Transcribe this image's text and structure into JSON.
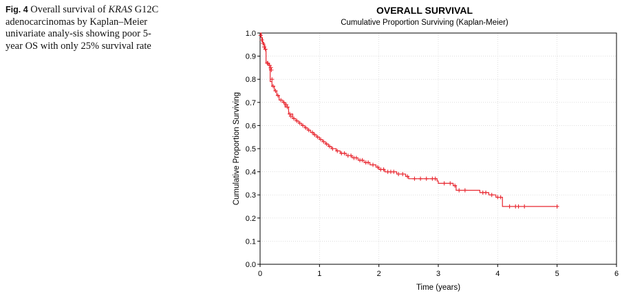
{
  "caption": {
    "label": "Fig. 4",
    "text_1": " Overall survival of ",
    "text_italic": "KRAS",
    "text_2": " G12C adenocarcinomas by Kaplan–Meier univariate analy-sis showing poor 5-year OS with only 25% survival rate"
  },
  "chart_data": {
    "type": "line",
    "title": "OVERALL SURVIVAL",
    "subtitle": "Cumulative Proportion Surviving (Kaplan-Meier)",
    "xlabel": "Time (years)",
    "ylabel": "Cumulative Proportion Surviving",
    "xlim": [
      0,
      6
    ],
    "ylim": [
      0,
      1
    ],
    "x_ticks": [
      "0",
      "1",
      "2",
      "3",
      "4",
      "5",
      "6"
    ],
    "y_ticks": [
      "0.0",
      "0.1",
      "0.2",
      "0.3",
      "0.4",
      "0.5",
      "0.6",
      "0.7",
      "0.8",
      "0.9",
      "1.0"
    ],
    "grid": true,
    "series_color": "#e8262f",
    "series": [
      {
        "step_points": [
          [
            0,
            1.0
          ],
          [
            0.02,
            0.98
          ],
          [
            0.04,
            0.96
          ],
          [
            0.06,
            0.95
          ],
          [
            0.08,
            0.93
          ],
          [
            0.1,
            0.87
          ],
          [
            0.15,
            0.86
          ],
          [
            0.16,
            0.84
          ],
          [
            0.17,
            0.79
          ],
          [
            0.2,
            0.77
          ],
          [
            0.24,
            0.75
          ],
          [
            0.28,
            0.73
          ],
          [
            0.32,
            0.71
          ],
          [
            0.38,
            0.7
          ],
          [
            0.42,
            0.68
          ],
          [
            0.48,
            0.65
          ],
          [
            0.55,
            0.63
          ],
          [
            0.6,
            0.62
          ],
          [
            0.65,
            0.61
          ],
          [
            0.7,
            0.6
          ],
          [
            0.75,
            0.59
          ],
          [
            0.8,
            0.58
          ],
          [
            0.85,
            0.57
          ],
          [
            0.9,
            0.56
          ],
          [
            0.95,
            0.55
          ],
          [
            1.0,
            0.54
          ],
          [
            1.05,
            0.53
          ],
          [
            1.1,
            0.52
          ],
          [
            1.15,
            0.51
          ],
          [
            1.2,
            0.5
          ],
          [
            1.28,
            0.49
          ],
          [
            1.35,
            0.48
          ],
          [
            1.45,
            0.47
          ],
          [
            1.55,
            0.46
          ],
          [
            1.65,
            0.45
          ],
          [
            1.75,
            0.44
          ],
          [
            1.85,
            0.43
          ],
          [
            1.95,
            0.42
          ],
          [
            2.0,
            0.41
          ],
          [
            2.1,
            0.4
          ],
          [
            2.3,
            0.39
          ],
          [
            2.45,
            0.38
          ],
          [
            2.5,
            0.37
          ],
          [
            2.98,
            0.36
          ],
          [
            3.0,
            0.35
          ],
          [
            3.25,
            0.34
          ],
          [
            3.3,
            0.32
          ],
          [
            3.7,
            0.31
          ],
          [
            3.85,
            0.3
          ],
          [
            3.97,
            0.29
          ],
          [
            4.08,
            0.25
          ]
        ],
        "end_x": 5.02,
        "censor_marks": [
          [
            0.01,
            0.99
          ],
          [
            0.03,
            0.97
          ],
          [
            0.05,
            0.955
          ],
          [
            0.07,
            0.94
          ],
          [
            0.09,
            0.93
          ],
          [
            0.12,
            0.87
          ],
          [
            0.13,
            0.87
          ],
          [
            0.16,
            0.86
          ],
          [
            0.18,
            0.85
          ],
          [
            0.19,
            0.84
          ],
          [
            0.2,
            0.8
          ],
          [
            0.22,
            0.77
          ],
          [
            0.26,
            0.75
          ],
          [
            0.3,
            0.73
          ],
          [
            0.35,
            0.71
          ],
          [
            0.4,
            0.7
          ],
          [
            0.44,
            0.69
          ],
          [
            0.46,
            0.68
          ],
          [
            0.5,
            0.65
          ],
          [
            0.52,
            0.64
          ],
          [
            0.57,
            0.63
          ],
          [
            0.62,
            0.62
          ],
          [
            0.67,
            0.61
          ],
          [
            0.72,
            0.6
          ],
          [
            0.77,
            0.59
          ],
          [
            0.82,
            0.58
          ],
          [
            0.88,
            0.57
          ],
          [
            0.92,
            0.56
          ],
          [
            0.97,
            0.55
          ],
          [
            1.02,
            0.54
          ],
          [
            1.07,
            0.53
          ],
          [
            1.12,
            0.52
          ],
          [
            1.17,
            0.51
          ],
          [
            1.22,
            0.5
          ],
          [
            1.3,
            0.49
          ],
          [
            1.37,
            0.48
          ],
          [
            1.42,
            0.48
          ],
          [
            1.48,
            0.47
          ],
          [
            1.53,
            0.47
          ],
          [
            1.58,
            0.46
          ],
          [
            1.62,
            0.46
          ],
          [
            1.68,
            0.45
          ],
          [
            1.72,
            0.45
          ],
          [
            1.78,
            0.44
          ],
          [
            1.82,
            0.44
          ],
          [
            1.9,
            0.43
          ],
          [
            1.98,
            0.42
          ],
          [
            2.03,
            0.41
          ],
          [
            2.08,
            0.41
          ],
          [
            2.15,
            0.4
          ],
          [
            2.2,
            0.4
          ],
          [
            2.25,
            0.4
          ],
          [
            2.33,
            0.39
          ],
          [
            2.4,
            0.39
          ],
          [
            2.48,
            0.38
          ],
          [
            2.6,
            0.37
          ],
          [
            2.7,
            0.37
          ],
          [
            2.8,
            0.37
          ],
          [
            2.9,
            0.37
          ],
          [
            2.95,
            0.37
          ],
          [
            3.1,
            0.35
          ],
          [
            3.2,
            0.35
          ],
          [
            3.28,
            0.34
          ],
          [
            3.35,
            0.32
          ],
          [
            3.45,
            0.32
          ],
          [
            3.75,
            0.31
          ],
          [
            3.8,
            0.31
          ],
          [
            3.9,
            0.3
          ],
          [
            4.0,
            0.29
          ],
          [
            4.05,
            0.29
          ],
          [
            4.2,
            0.25
          ],
          [
            4.3,
            0.25
          ],
          [
            4.35,
            0.25
          ],
          [
            4.45,
            0.25
          ],
          [
            5.0,
            0.25
          ]
        ]
      }
    ]
  }
}
